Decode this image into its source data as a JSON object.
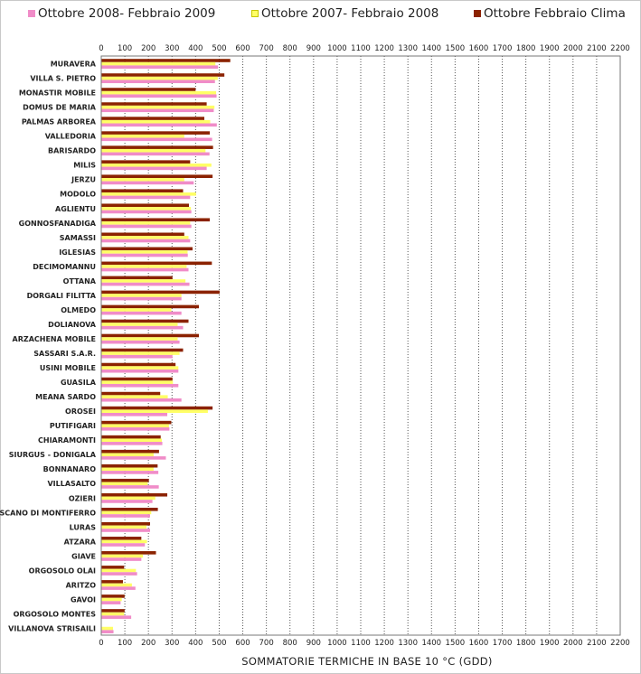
{
  "chart_data": {
    "type": "bar",
    "orientation": "horizontal",
    "xlabel": "SOMMATORIE TERMICHE IN BASE 10 °C (GDD)",
    "xlim": [
      0,
      2200
    ],
    "xticks": [
      0,
      100,
      200,
      300,
      400,
      500,
      600,
      700,
      800,
      900,
      1000,
      1100,
      1200,
      1300,
      1400,
      1500,
      1600,
      1700,
      1800,
      1900,
      2000,
      2100,
      2200
    ],
    "grid": "vertical-dotted",
    "legend_position": "top",
    "categories": [
      "MURAVERA",
      "VILLA S. PIETRO",
      "MONASTIR MOBILE",
      "DOMUS DE MARIA",
      "PALMAS ARBOREA",
      "VALLEDORIA",
      "BARISARDO",
      "MILIS",
      "JERZU",
      "MODOLO",
      "AGLIENTU",
      "GONNOSFANADIGA",
      "SAMASSI",
      "IGLESIAS",
      "DECIMOMANNU",
      "OTTANA",
      "DORGALI FILITTA",
      "OLMEDO",
      "DOLIANOVA",
      "ARZACHENA MOBILE",
      "SASSARI S.A.R.",
      "USINI MOBILE",
      "GUASILA",
      "MEANA SARDO",
      "OROSEI",
      "PUTIFIGARI",
      "CHIARAMONTI",
      "SIURGUS - DONIGALA",
      "BONNANARO",
      "VILLASALTO",
      "OZIERI",
      "SCANO DI MONTIFERRO",
      "LURAS",
      "ATZARA",
      "GIAVE",
      "ORGOSOLO OLAI",
      "ARITZO",
      "GAVOI",
      "ORGOSOLO MONTES",
      "VILLANOVA STRISAILI"
    ],
    "series": [
      {
        "name": "Ottobre Febbraio Clima",
        "color": "#8b2200",
        "values": [
          545,
          520,
          398,
          445,
          435,
          458,
          472,
          375,
          470,
          345,
          370,
          458,
          350,
          385,
          467,
          300,
          500,
          412,
          368,
          412,
          345,
          313,
          300,
          248,
          470,
          295,
          250,
          243,
          237,
          200,
          278,
          238,
          205,
          168,
          230,
          95,
          90,
          97,
          97,
          0
        ]
      },
      {
        "name": "Ottobre 2007- Febbraio 2008",
        "color": "#ffff66",
        "values": [
          482,
          492,
          485,
          478,
          460,
          350,
          440,
          465,
          350,
          400,
          378,
          375,
          368,
          364,
          360,
          355,
          338,
          295,
          322,
          322,
          330,
          325,
          302,
          280,
          450,
          285,
          255,
          220,
          220,
          195,
          227,
          210,
          190,
          192,
          175,
          145,
          128,
          85,
          95,
          48
        ]
      },
      {
        "name": "Ottobre 2008- Febbraio 2009",
        "color": "#f08cc8",
        "values": [
          493,
          480,
          487,
          475,
          488,
          468,
          457,
          445,
          390,
          375,
          380,
          380,
          375,
          365,
          368,
          372,
          338,
          338,
          345,
          330,
          300,
          325,
          325,
          338,
          278,
          287,
          257,
          272,
          240,
          242,
          215,
          205,
          205,
          183,
          168,
          150,
          143,
          80,
          125,
          50
        ]
      }
    ]
  }
}
